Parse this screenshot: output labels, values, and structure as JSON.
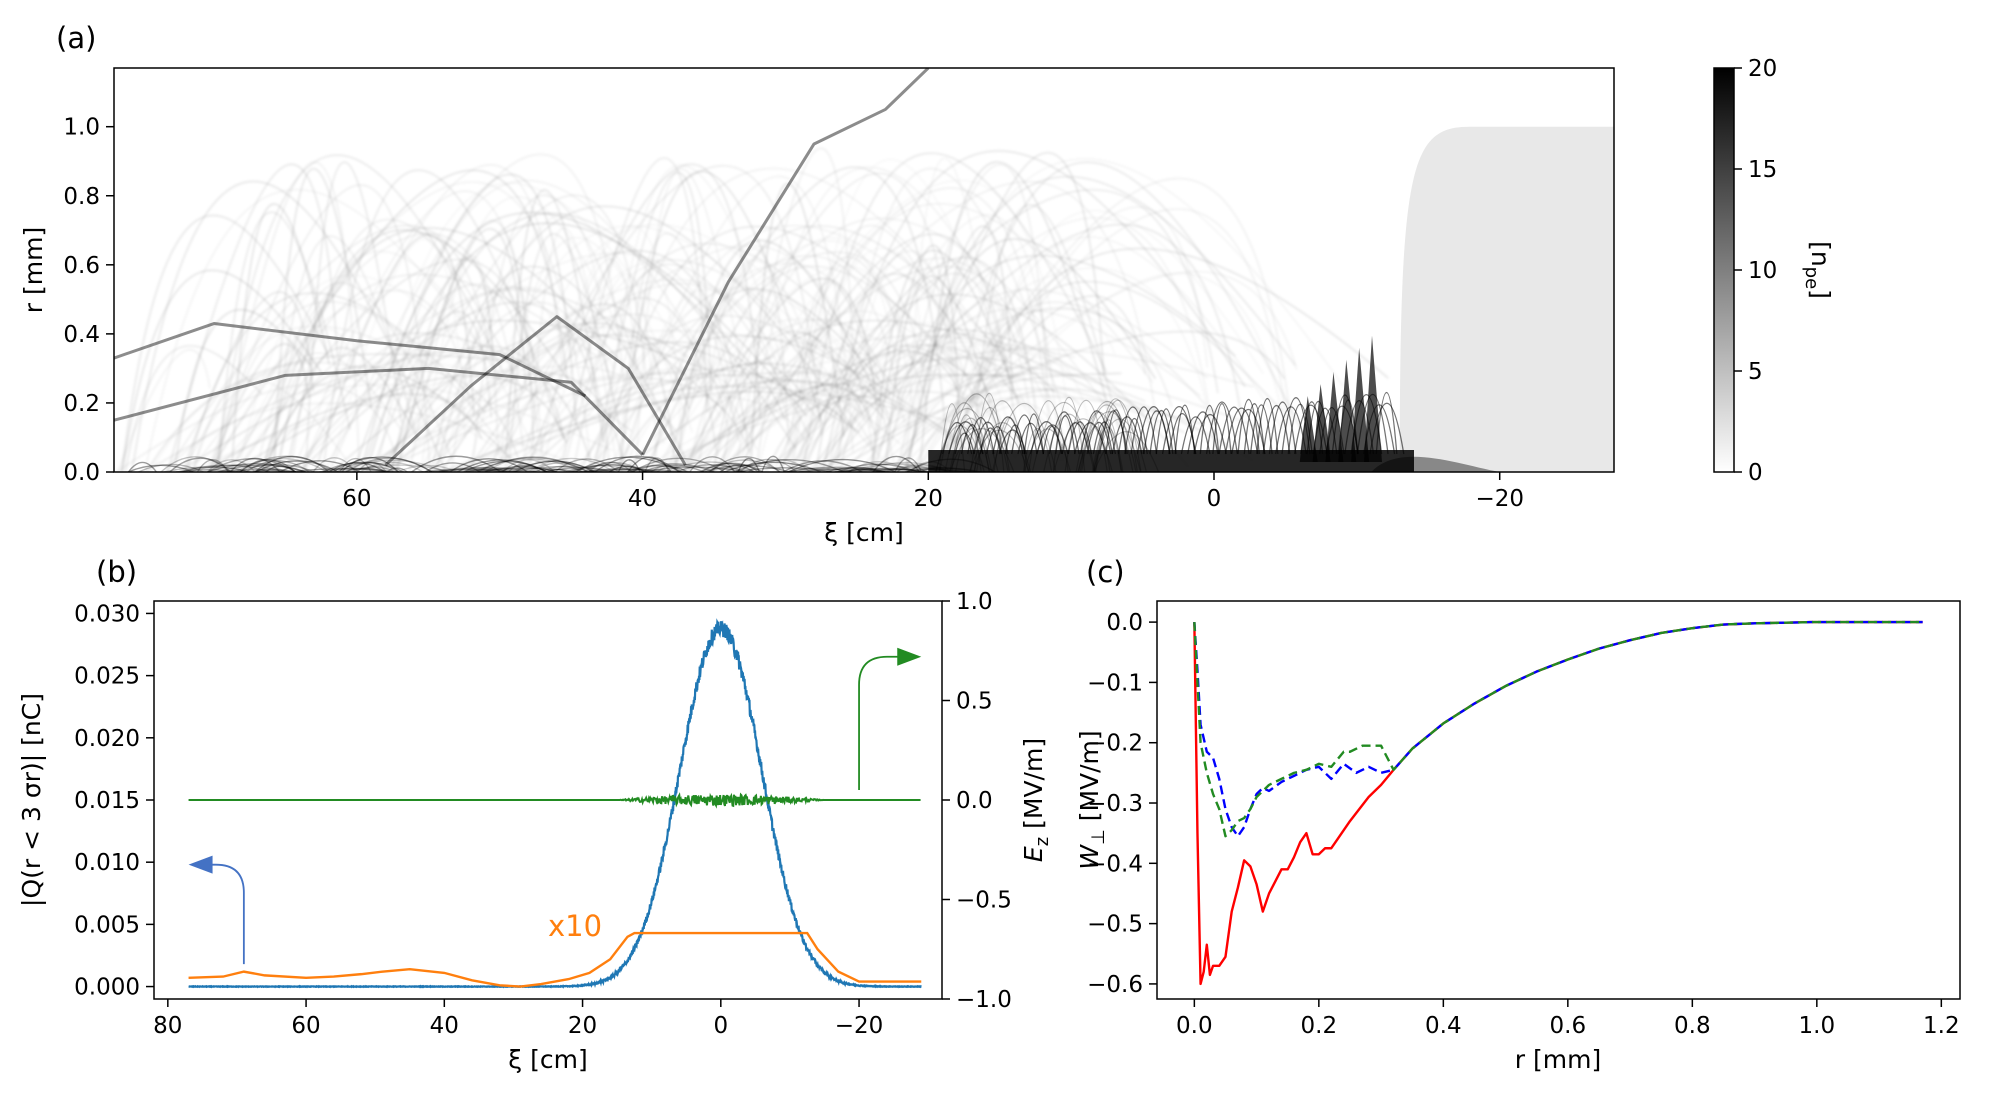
{
  "chart_data": [
    {
      "panel": "(a)",
      "type": "heatmap",
      "xlabel": "ξ [cm]",
      "ylabel": "r [mm]",
      "xlim": [
        77,
        -28
      ],
      "ylim": [
        0,
        1.17
      ],
      "x_ticks": [
        60,
        40,
        20,
        0,
        -20
      ],
      "x_tick_labels": [
        "60",
        "40",
        "20",
        "0",
        "−20"
      ],
      "y_ticks": [
        0.0,
        0.2,
        0.4,
        0.6,
        0.8,
        1.0
      ],
      "y_tick_labels": [
        "0.0",
        "0.2",
        "0.4",
        "0.6",
        "0.8",
        "1.0"
      ],
      "colorbar": {
        "label": "[n_pe]",
        "label_main": "[n",
        "label_sub": "pe",
        "label_end": "]",
        "range": [
          0,
          20
        ],
        "ticks": [
          0,
          5,
          10,
          15,
          20
        ],
        "tick_labels": [
          "0",
          "5",
          "10",
          "15",
          "20"
        ],
        "colormap": "gray_r"
      },
      "features": {
        "unperturbed_plasma_radius_mm": 1.0,
        "plasma_start_xi_cm": -13,
        "dense_column_end_xi_cm": 20,
        "filament_tracks": [
          {
            "xi": [
              77,
              70,
              60,
              50,
              44
            ],
            "r": [
              0.33,
              0.43,
              0.38,
              0.34,
              0.22
            ]
          },
          {
            "xi": [
              77,
              65,
              55,
              45,
              40
            ],
            "r": [
              0.15,
              0.28,
              0.3,
              0.26,
              0.05
            ]
          },
          {
            "xi": [
              58,
              52,
              46,
              41,
              37
            ],
            "r": [
              0.02,
              0.25,
              0.45,
              0.3,
              0.02
            ]
          },
          {
            "xi": [
              40,
              34,
              28,
              23,
              20
            ],
            "r": [
              0.05,
              0.55,
              0.95,
              1.05,
              1.17
            ]
          }
        ]
      }
    },
    {
      "panel": "(b)",
      "type": "line",
      "xlabel": "ξ [cm]",
      "ylabel_left": "|Q(r < 3 σr)| [nC]",
      "ylabel_right": "E_z [MV/m]",
      "ylabel_right_main": "E",
      "ylabel_right_sub": "z",
      "ylabel_right_end": " [MV/m]",
      "xlim": [
        82,
        -32
      ],
      "ylim_left": [
        -0.001,
        0.031
      ],
      "ylim_right": [
        -1.0,
        1.0
      ],
      "x_ticks": [
        80,
        60,
        40,
        20,
        0,
        -20
      ],
      "x_tick_labels": [
        "80",
        "60",
        "40",
        "20",
        "0",
        "−20"
      ],
      "y_ticks_left": [
        0.0,
        0.005,
        0.01,
        0.015,
        0.02,
        0.025,
        0.03
      ],
      "y_tick_labels_left": [
        "0.000",
        "0.005",
        "0.010",
        "0.015",
        "0.020",
        "0.025",
        "0.030"
      ],
      "y_ticks_right": [
        -1.0,
        -0.5,
        0.0,
        0.5,
        1.0
      ],
      "y_tick_labels_right": [
        "−1.0",
        "−0.5",
        "0.0",
        "0.5",
        "1.0"
      ],
      "annotation": "x10",
      "series": [
        {
          "color": "#1f77b4",
          "axis": "left",
          "shape": "gaussian",
          "amplitude": 0.0288,
          "center": 0,
          "sigma": 5.9,
          "x_range": [
            77,
            -29
          ]
        },
        {
          "color": "#ff7f0e",
          "axis": "left",
          "x": [
            77,
            72,
            69,
            66,
            60,
            56,
            52,
            49,
            45,
            40,
            36,
            32,
            29,
            26,
            22,
            19,
            16,
            13.5,
            12.5,
            -12.5,
            -14,
            -17,
            -20,
            -29
          ],
          "y": [
            0.0007,
            0.0008,
            0.0012,
            0.0009,
            0.0007,
            0.0008,
            0.001,
            0.0012,
            0.0014,
            0.0011,
            0.0005,
            0.0001,
            0.0,
            0.0002,
            0.0006,
            0.0011,
            0.0022,
            0.004,
            0.0043,
            0.0043,
            0.003,
            0.0012,
            0.0004,
            0.0004
          ]
        },
        {
          "color": "#228b22",
          "axis": "right",
          "shape": "flat_with_noise",
          "value": 0.0,
          "noise_amplitude": 0.03,
          "noise_region": [
            15,
            -15
          ],
          "x_range": [
            77,
            -29
          ]
        }
      ],
      "arrows": [
        {
          "color": "#4472c4",
          "points_to": "left axis",
          "hook_x": 69,
          "hook_y": 0.0018,
          "tip": [
            77,
            0.0098
          ]
        },
        {
          "color": "#228b22",
          "points_to": "right axis",
          "hook_x": -20,
          "hook_y": 0.05,
          "tip": [
            -29,
            0.72
          ]
        }
      ]
    },
    {
      "panel": "(c)",
      "type": "line",
      "xlabel": "r [mm]",
      "ylabel": "W⊥ [MV/m]",
      "xlim": [
        -0.06,
        1.23
      ],
      "ylim": [
        -0.625,
        0.035
      ],
      "x_ticks": [
        0.0,
        0.2,
        0.4,
        0.6,
        0.8,
        1.0,
        1.2
      ],
      "x_tick_labels": [
        "0.0",
        "0.2",
        "0.4",
        "0.6",
        "0.8",
        "1.0",
        "1.2"
      ],
      "y_ticks": [
        0.0,
        -0.1,
        -0.2,
        -0.3,
        -0.4,
        -0.5,
        -0.6
      ],
      "y_tick_labels": [
        "0.0",
        "−0.1",
        "−0.2",
        "−0.3",
        "−0.4",
        "−0.5",
        "−0.6"
      ],
      "series": [
        {
          "color": "#ff0000",
          "style": "solid",
          "x": [
            0.0,
            0.005,
            0.01,
            0.015,
            0.02,
            0.025,
            0.03,
            0.04,
            0.05,
            0.06,
            0.07,
            0.08,
            0.09,
            0.1,
            0.11,
            0.12,
            0.13,
            0.14,
            0.15,
            0.16,
            0.17,
            0.18,
            0.19,
            0.2,
            0.21,
            0.22,
            0.23,
            0.25,
            0.28,
            0.3,
            0.32,
            0.35,
            0.4,
            0.45,
            0.5,
            0.55,
            0.6,
            0.65,
            0.7,
            0.75,
            0.8,
            0.85,
            0.9,
            0.95,
            0.99,
            1.05,
            1.1,
            1.17
          ],
          "y": [
            0.0,
            -0.35,
            -0.6,
            -0.58,
            -0.535,
            -0.585,
            -0.57,
            -0.57,
            -0.555,
            -0.48,
            -0.44,
            -0.395,
            -0.405,
            -0.435,
            -0.48,
            -0.45,
            -0.43,
            -0.41,
            -0.41,
            -0.39,
            -0.365,
            -0.35,
            -0.385,
            -0.385,
            -0.375,
            -0.375,
            -0.36,
            -0.33,
            -0.29,
            -0.27,
            -0.245,
            -0.21,
            -0.168,
            -0.135,
            -0.106,
            -0.082,
            -0.062,
            -0.044,
            -0.03,
            -0.018,
            -0.01,
            -0.004,
            -0.002,
            -0.001,
            0.0,
            0.0,
            0.0,
            0.0
          ]
        },
        {
          "color": "#0000ff",
          "style": "dashed",
          "x": [
            0.0,
            0.005,
            0.01,
            0.02,
            0.03,
            0.04,
            0.05,
            0.06,
            0.07,
            0.08,
            0.09,
            0.1,
            0.11,
            0.12,
            0.14,
            0.16,
            0.18,
            0.2,
            0.22,
            0.24,
            0.26,
            0.28,
            0.3,
            0.32,
            0.35,
            0.4,
            0.45,
            0.5,
            0.55,
            0.6,
            0.65,
            0.7,
            0.75,
            0.8,
            0.85,
            0.9,
            0.95,
            0.99,
            1.05,
            1.1,
            1.17
          ],
          "y": [
            0.0,
            -0.08,
            -0.17,
            -0.215,
            -0.225,
            -0.26,
            -0.31,
            -0.34,
            -0.355,
            -0.34,
            -0.31,
            -0.285,
            -0.275,
            -0.28,
            -0.265,
            -0.255,
            -0.245,
            -0.24,
            -0.26,
            -0.235,
            -0.25,
            -0.24,
            -0.25,
            -0.245,
            -0.21,
            -0.168,
            -0.135,
            -0.106,
            -0.082,
            -0.062,
            -0.044,
            -0.03,
            -0.018,
            -0.01,
            -0.004,
            -0.002,
            -0.001,
            0.0,
            0.0,
            0.0,
            0.0
          ]
        },
        {
          "color": "#228b22",
          "style": "dashed",
          "x": [
            0.0,
            0.005,
            0.01,
            0.02,
            0.03,
            0.04,
            0.05,
            0.06,
            0.07,
            0.08,
            0.09,
            0.1,
            0.12,
            0.14,
            0.16,
            0.18,
            0.2,
            0.22,
            0.24,
            0.25,
            0.27,
            0.3,
            0.32,
            0.35,
            0.4,
            0.45,
            0.5,
            0.55,
            0.6,
            0.65,
            0.7,
            0.75,
            0.8,
            0.85,
            0.9,
            0.95,
            0.99,
            1.05,
            1.1,
            1.17
          ],
          "y": [
            0.0,
            -0.1,
            -0.2,
            -0.25,
            -0.285,
            -0.31,
            -0.355,
            -0.345,
            -0.33,
            -0.325,
            -0.31,
            -0.29,
            -0.27,
            -0.26,
            -0.25,
            -0.245,
            -0.235,
            -0.24,
            -0.215,
            -0.215,
            -0.205,
            -0.205,
            -0.245,
            -0.21,
            -0.168,
            -0.135,
            -0.106,
            -0.082,
            -0.062,
            -0.044,
            -0.03,
            -0.018,
            -0.01,
            -0.004,
            -0.002,
            -0.001,
            0.0,
            0.0,
            0.0,
            0.0
          ]
        }
      ]
    }
  ]
}
